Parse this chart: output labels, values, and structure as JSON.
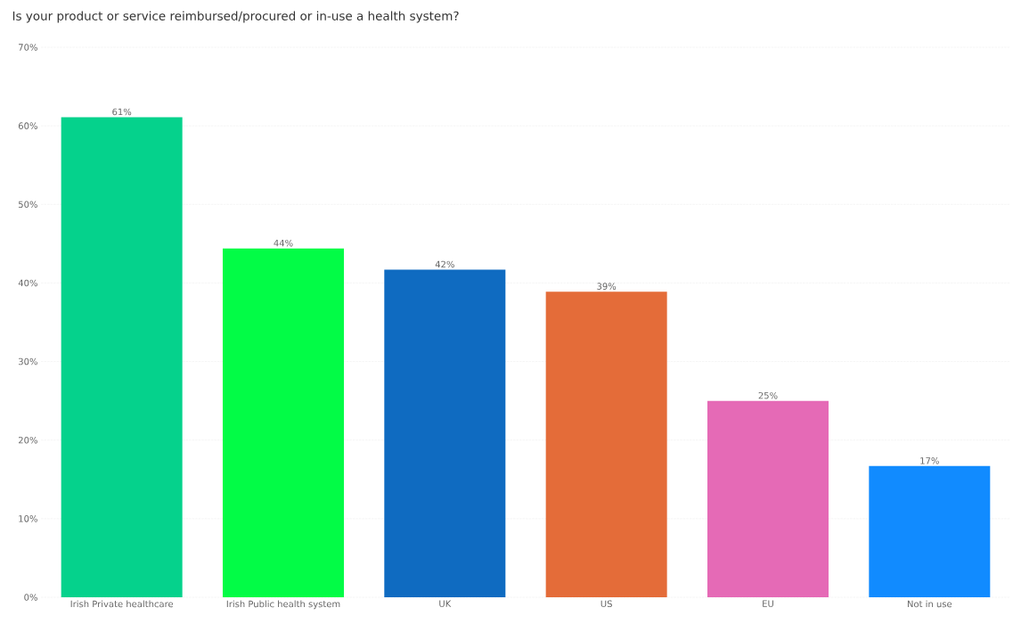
{
  "chart_data": {
    "type": "bar",
    "title": "Is your product or service reimbursed/procured or in-use a health system?",
    "categories": [
      "Irish Private healthcare",
      "Irish Public health system",
      "UK",
      "US",
      "EU",
      "Not in use"
    ],
    "values": [
      61.1,
      44.4,
      41.7,
      38.9,
      25.0,
      16.7
    ],
    "value_labels": [
      "61%",
      "44%",
      "42%",
      "39%",
      "25%",
      "17%"
    ],
    "colors": [
      "#05d28c",
      "#02fc46",
      "#0f6bc1",
      "#e46c39",
      "#e56ab6",
      "#118bff"
    ],
    "ylim": [
      0,
      70
    ],
    "yticks": [
      {
        "value": 0,
        "label": "0%"
      },
      {
        "value": 10,
        "label": "10%"
      },
      {
        "value": 20,
        "label": "20%"
      },
      {
        "value": 30,
        "label": "30%"
      },
      {
        "value": 40,
        "label": "40%"
      },
      {
        "value": 50,
        "label": "50%"
      },
      {
        "value": 60,
        "label": "60%"
      },
      {
        "value": 70,
        "label": "70%"
      }
    ],
    "grid": "y"
  }
}
